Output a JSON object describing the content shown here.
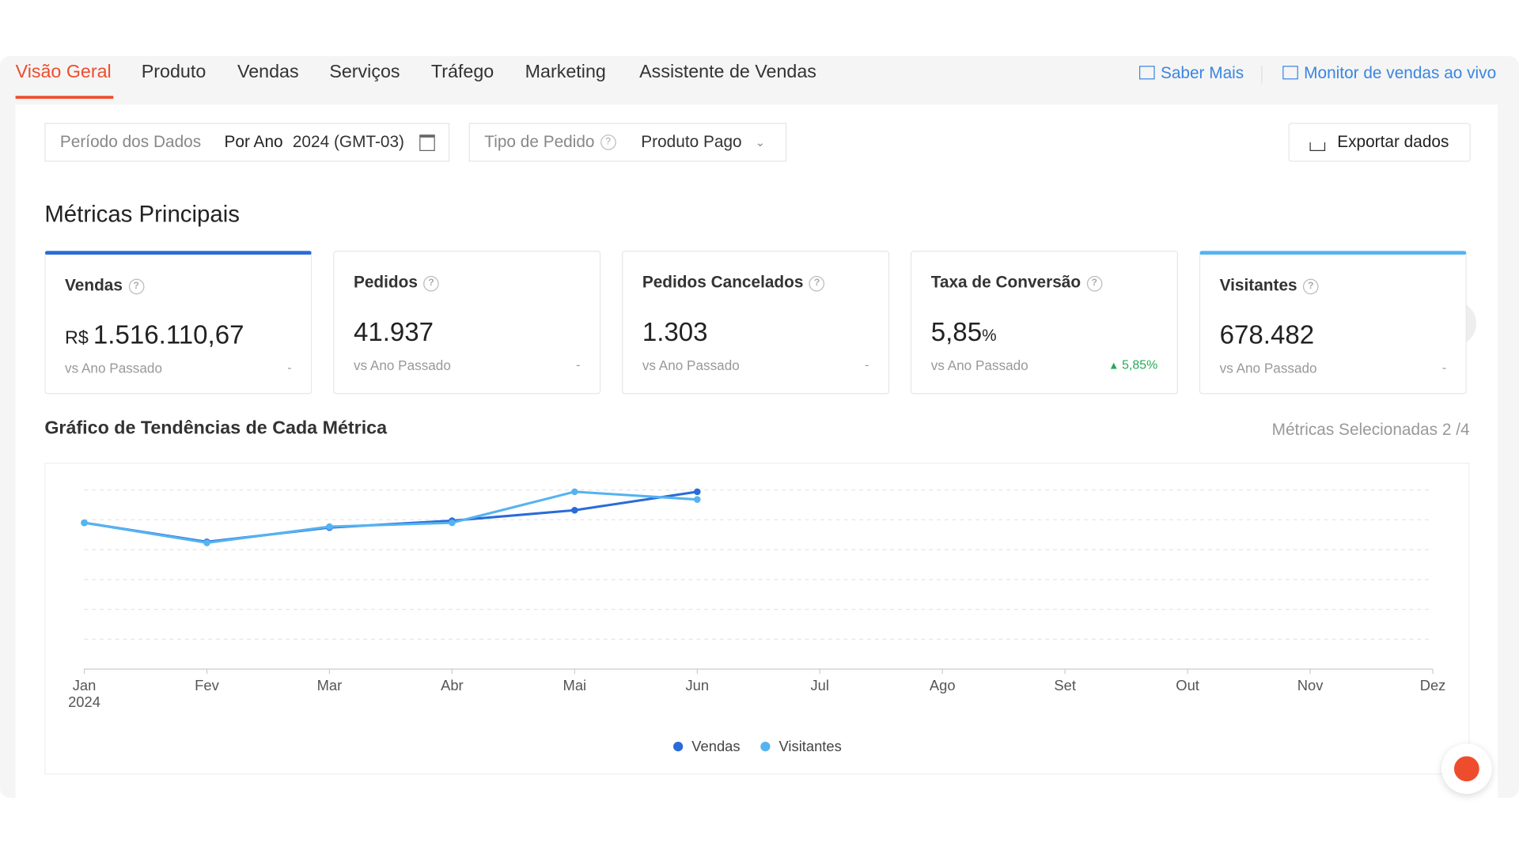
{
  "tabs": [
    "Visão Geral",
    "Produto",
    "Vendas",
    "Serviços",
    "Tráfego",
    "Marketing",
    "Assistente de Vendas"
  ],
  "links": [
    "Saber Mais",
    "Monitor de vendas ao vivo"
  ],
  "filters": {
    "period_label": "Período dos Dados",
    "period_mode": "Por Ano",
    "period_value": "2024 (GMT-03)",
    "order_type_label": "Tipo de Pedido",
    "order_type_value": "Produto Pago",
    "export": "Exportar dados"
  },
  "section_title": "Métricas Principais",
  "metrics": [
    {
      "name": "Vendas",
      "currency": "R$",
      "value": "1.516.110,67",
      "compare": "vs Ano Passado",
      "change": "-"
    },
    {
      "name": "Pedidos",
      "value": "41.937",
      "compare": "vs Ano Passado",
      "change": "-"
    },
    {
      "name": "Pedidos Cancelados",
      "value": "1.303",
      "compare": "vs Ano Passado",
      "change": "-"
    },
    {
      "name": "Taxa de Conversão",
      "value": "5,85",
      "unit": "%",
      "compare": "vs Ano Passado",
      "change": "5,85%"
    },
    {
      "name": "Visitantes",
      "value": "678.482",
      "compare": "vs Ano Passado",
      "change": "-"
    }
  ],
  "trend_title": "Gráfico de Tendências de Cada Métrica",
  "selected": "Métricas Selecionadas 2 /4",
  "chart_data": {
    "type": "line",
    "categories": [
      "Jan",
      "Fev",
      "Mar",
      "Abr",
      "Mai",
      "Jun",
      "Jul",
      "Ago",
      "Set",
      "Out",
      "Nov",
      "Dez"
    ],
    "year_label": "2024",
    "ylim": [
      0,
      6
    ],
    "series": [
      {
        "name": "Vendas",
        "color": "#2a6bd8",
        "values": [
          4.9,
          4.26,
          4.74,
          4.97,
          5.32,
          5.94,
          null,
          null,
          null,
          null,
          null,
          null
        ]
      },
      {
        "name": "Visitantes",
        "color": "#55b3f0",
        "values": [
          4.9,
          4.23,
          4.77,
          4.9,
          5.94,
          5.68,
          null,
          null,
          null,
          null,
          null,
          null
        ]
      }
    ]
  }
}
